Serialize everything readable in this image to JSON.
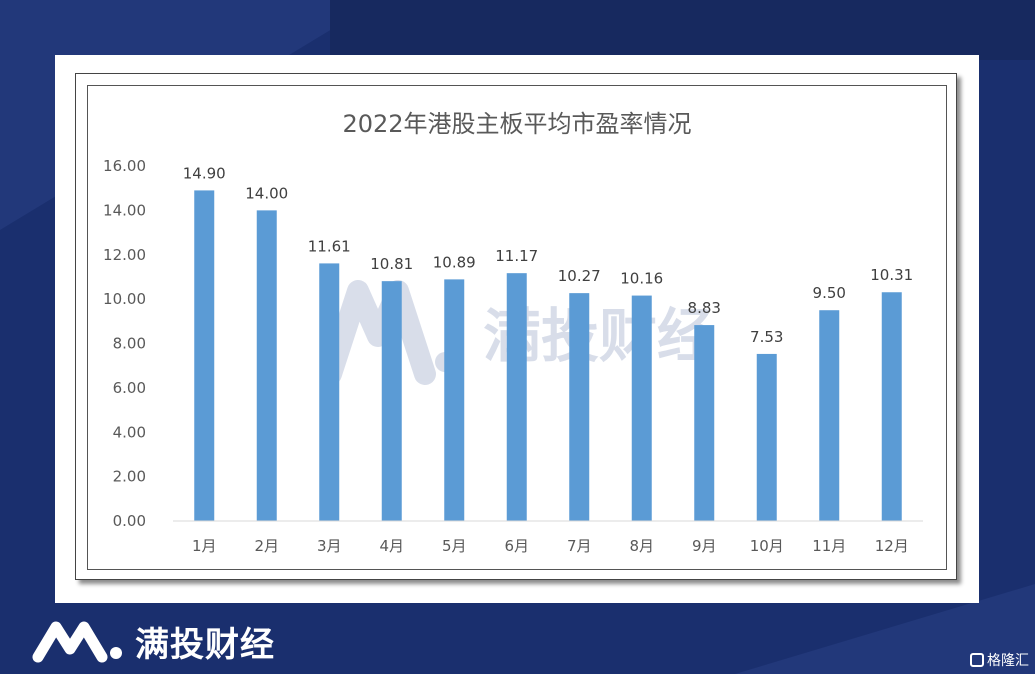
{
  "chart_data": {
    "type": "bar",
    "title": "2022年港股主板平均市盈率情况",
    "categories": [
      "1月",
      "2月",
      "3月",
      "4月",
      "5月",
      "6月",
      "7月",
      "8月",
      "9月",
      "10月",
      "11月",
      "12月"
    ],
    "values": [
      14.9,
      14.0,
      11.61,
      10.81,
      10.89,
      11.17,
      10.27,
      10.16,
      8.83,
      7.53,
      9.5,
      10.31
    ],
    "data_labels": [
      "14.90",
      "14.00",
      "11.61",
      "10.81",
      "10.89",
      "11.17",
      "10.27",
      "10.16",
      "8.83",
      "7.53",
      "9.50",
      "10.31"
    ],
    "ylim": [
      0,
      16
    ],
    "yticks": [
      "0.00",
      "2.00",
      "4.00",
      "6.00",
      "8.00",
      "10.00",
      "12.00",
      "14.00",
      "16.00"
    ],
    "bar_color": "#5b9bd5",
    "grid": false,
    "xlabel": "",
    "ylabel": ""
  },
  "watermark": "满投财经",
  "brand": {
    "name": "满投财经"
  },
  "corner": {
    "text": "格隆汇"
  },
  "colors": {
    "background": "#1a2f6e",
    "panel": "#ffffff",
    "bar": "#5b9bd5"
  }
}
